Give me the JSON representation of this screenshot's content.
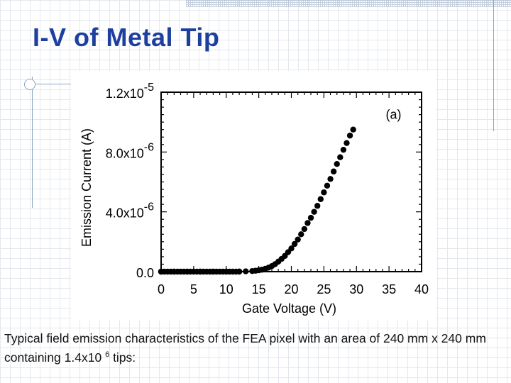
{
  "slide": {
    "title": "I-V of Metal Tip",
    "caption_part1": "Typical field emission characteristics of the FEA pixel with an area of 240 mm x 240 mm containing 1.4x10",
    "caption_sup": "6",
    "caption_part2": " tips:"
  },
  "chart_data": {
    "type": "scatter",
    "annotation": "(a)",
    "xlabel": "Gate Voltage (V)",
    "ylabel": "Emission Current (A)",
    "xlim": [
      0,
      40
    ],
    "ylim": [
      0,
      1.2e-05
    ],
    "x_ticks": [
      0,
      5,
      10,
      15,
      20,
      25,
      30,
      35,
      40
    ],
    "y_ticks": [
      {
        "value": 0,
        "mantissa": "0.0",
        "exp": ""
      },
      {
        "value": 4e-06,
        "mantissa": "4.0x10",
        "exp": "-6"
      },
      {
        "value": 8e-06,
        "mantissa": "8.0x10",
        "exp": "-6"
      },
      {
        "value": 1.2e-05,
        "mantissa": "1.2x10",
        "exp": "-5"
      }
    ],
    "grid": false,
    "marker_color": "#000000",
    "series": [
      {
        "x": [
          0,
          2,
          4,
          6,
          8,
          10,
          12,
          13,
          14,
          14.5,
          15,
          15.5,
          16,
          16.5,
          17,
          17.5,
          18,
          18.5,
          19,
          19.5,
          20,
          20.5,
          21,
          21.5,
          22,
          22.5,
          23,
          23.5,
          24,
          24.5,
          25,
          25.5,
          26,
          26.5,
          27,
          27.5,
          28,
          28.5,
          29,
          29.5
        ],
        "y": [
          0,
          0,
          0,
          0,
          0,
          0,
          1e-08,
          2e-08,
          4e-08,
          6e-08,
          9e-08,
          1.3e-07,
          1.9e-07,
          2.7e-07,
          3.7e-07,
          5e-07,
          6.7e-07,
          8.5e-07,
          1.05e-06,
          1.3e-06,
          1.55e-06,
          1.85e-06,
          2.15e-06,
          2.5e-06,
          2.85e-06,
          3.25e-06,
          3.6e-06,
          4e-06,
          4.4e-06,
          4.85e-06,
          5.3e-06,
          5.75e-06,
          6.2e-06,
          6.7e-06,
          7.2e-06,
          7.65e-06,
          8.15e-06,
          8.6e-06,
          9.1e-06,
          9.5e-06
        ]
      }
    ]
  }
}
